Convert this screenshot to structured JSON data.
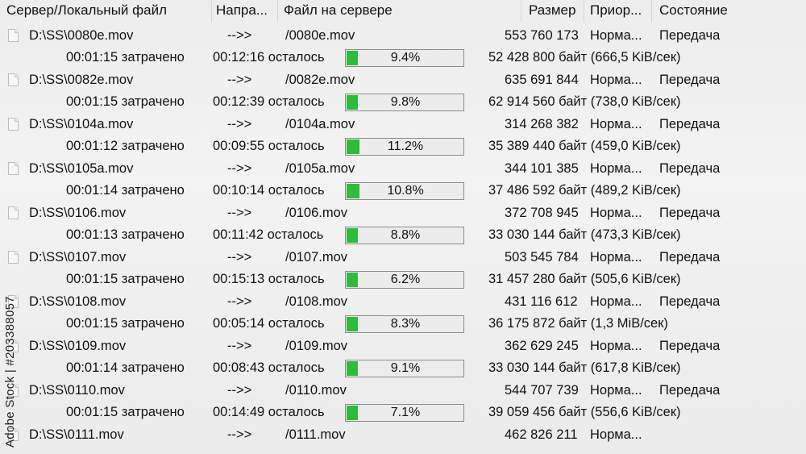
{
  "header": {
    "columns": [
      {
        "label": "Сервер/Локальный файл"
      },
      {
        "label": "Напра..."
      },
      {
        "label": "Файл на сервере"
      },
      {
        "label": "Размер"
      },
      {
        "label": "Приор..."
      },
      {
        "label": "Состояние"
      }
    ]
  },
  "transfers": [
    {
      "local": "D:\\SS\\0080e.mov",
      "direction": "-->>",
      "remote": "/0080e.mov",
      "size": "553 760 173",
      "priority": "Норма...",
      "status": "Передача",
      "elapsed": "00:01:15 затрачено",
      "remaining": "00:12:16 осталось",
      "progress": 9.4,
      "progress_label": "9.4%",
      "transferred": "52 428 800 байт (666,5 KiB/сек)"
    },
    {
      "local": "D:\\SS\\0082e.mov",
      "direction": "-->>",
      "remote": "/0082e.mov",
      "size": "635 691 844",
      "priority": "Норма...",
      "status": "Передача",
      "elapsed": "00:01:15 затрачено",
      "remaining": "00:12:39 осталось",
      "progress": 9.8,
      "progress_label": "9.8%",
      "transferred": "62 914 560 байт (738,0 KiB/сек)"
    },
    {
      "local": "D:\\SS\\0104a.mov",
      "direction": "-->>",
      "remote": "/0104a.mov",
      "size": "314 268 382",
      "priority": "Норма...",
      "status": "Передача",
      "elapsed": "00:01:12 затрачено",
      "remaining": "00:09:55 осталось",
      "progress": 11.2,
      "progress_label": "11.2%",
      "transferred": "35 389 440 байт (459,0 KiB/сек)"
    },
    {
      "local": "D:\\SS\\0105a.mov",
      "direction": "-->>",
      "remote": "/0105a.mov",
      "size": "344 101 385",
      "priority": "Норма...",
      "status": "Передача",
      "elapsed": "00:01:14 затрачено",
      "remaining": "00:10:14 осталось",
      "progress": 10.8,
      "progress_label": "10.8%",
      "transferred": "37 486 592 байт (489,2 KiB/сек)"
    },
    {
      "local": "D:\\SS\\0106.mov",
      "direction": "-->>",
      "remote": "/0106.mov",
      "size": "372 708 945",
      "priority": "Норма...",
      "status": "Передача",
      "elapsed": "00:01:13 затрачено",
      "remaining": "00:11:42 осталось",
      "progress": 8.8,
      "progress_label": "8.8%",
      "transferred": "33 030 144 байт (473,3 KiB/сек)"
    },
    {
      "local": "D:\\SS\\0107.mov",
      "direction": "-->>",
      "remote": "/0107.mov",
      "size": "503 545 784",
      "priority": "Норма...",
      "status": "Передача",
      "elapsed": "00:01:15 затрачено",
      "remaining": "00:15:13 осталось",
      "progress": 6.2,
      "progress_label": "6.2%",
      "transferred": "31 457 280 байт (505,6 KiB/сек)"
    },
    {
      "local": "D:\\SS\\0108.mov",
      "direction": "-->>",
      "remote": "/0108.mov",
      "size": "431 116 612",
      "priority": "Норма...",
      "status": "Передача",
      "elapsed": "00:01:15 затрачено",
      "remaining": "00:05:14 осталось",
      "progress": 8.3,
      "progress_label": "8.3%",
      "transferred": "36 175 872 байт (1,3 MiB/сек)"
    },
    {
      "local": "D:\\SS\\0109.mov",
      "direction": "-->>",
      "remote": "/0109.mov",
      "size": "362 629 245",
      "priority": "Норма...",
      "status": "Передача",
      "elapsed": "00:01:14 затрачено",
      "remaining": "00:08:43 осталось",
      "progress": 9.1,
      "progress_label": "9.1%",
      "transferred": "33 030 144 байт (617,8 KiB/сек)"
    },
    {
      "local": "D:\\SS\\0110.mov",
      "direction": "-->>",
      "remote": "/0110.mov",
      "size": "544 707 739",
      "priority": "Норма...",
      "status": "Передача",
      "elapsed": "00:01:15 затрачено",
      "remaining": "00:14:49 осталось",
      "progress": 7.1,
      "progress_label": "7.1%",
      "transferred": "39 059 456 байт (556,6 KiB/сек)"
    }
  ],
  "last_row": {
    "local": "D:\\SS\\0111.mov",
    "direction": "-->>",
    "remote": "/0111.mov",
    "size": "462 826 211",
    "priority": "Норма..."
  },
  "watermark": "Adobe Stock | #203388057",
  "colors": {
    "progress_fill": "#2fbc3b",
    "background": "#f0f0f0"
  }
}
